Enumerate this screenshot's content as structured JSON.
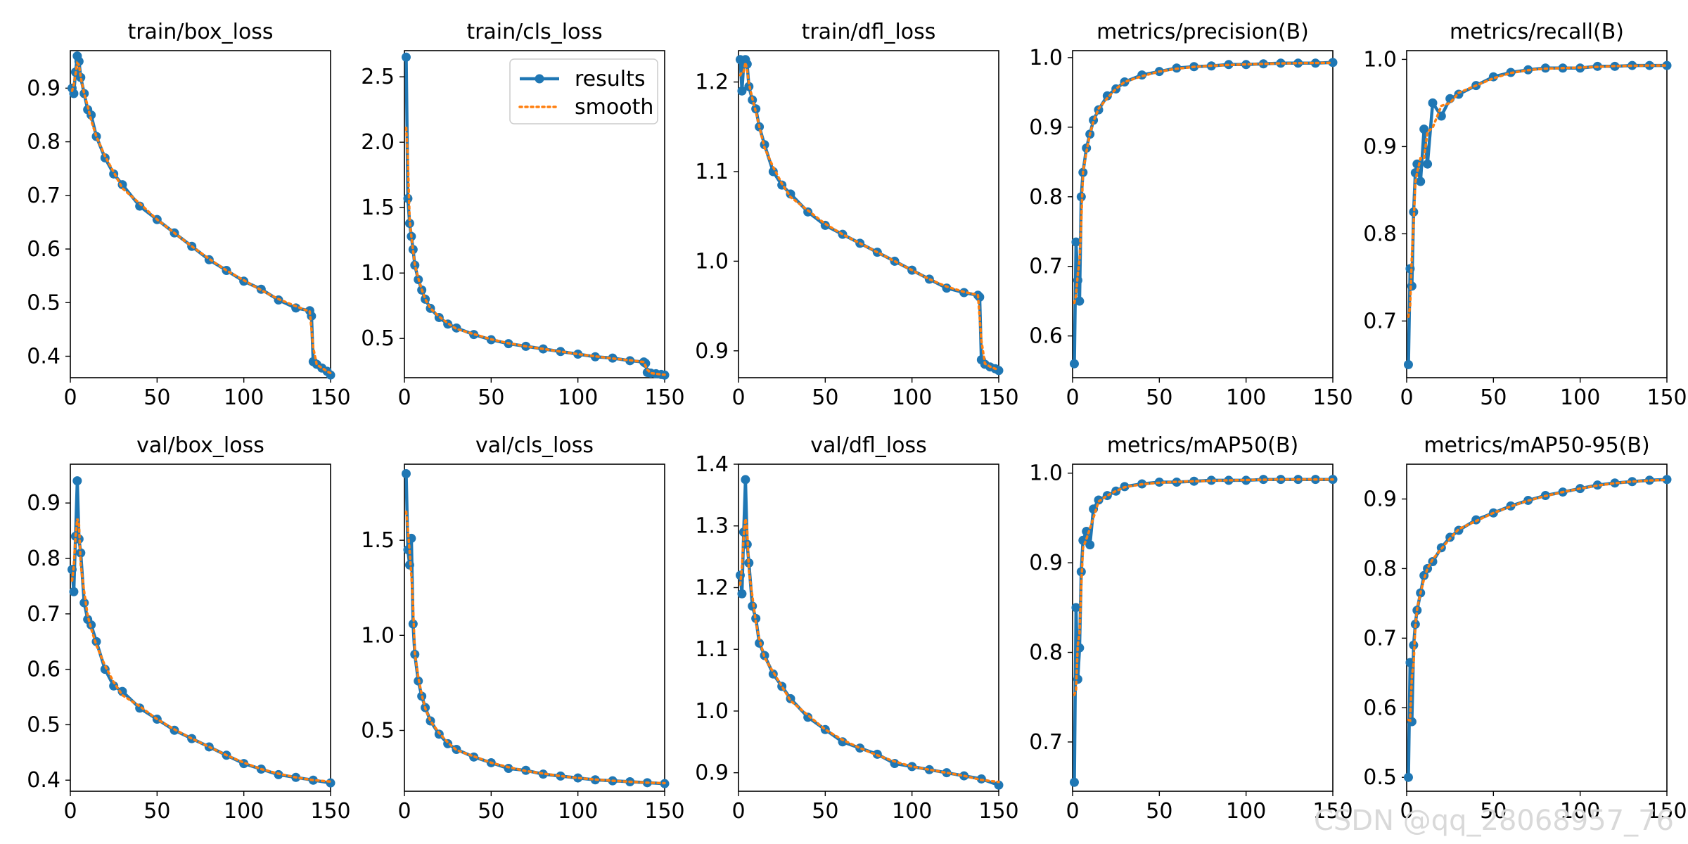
{
  "watermark": "CSDN @qq_28068957_76",
  "legend": {
    "entries": [
      "results",
      "smooth"
    ]
  },
  "colors": {
    "results": "#1f77b4",
    "smooth": "#ff7f0e",
    "axes": "#000000"
  },
  "chart_data": [
    {
      "type": "line",
      "title": "train/box_loss",
      "xlim": [
        0,
        150
      ],
      "ylim": [
        0.36,
        0.97
      ],
      "xticks": [
        0,
        50,
        100,
        150
      ],
      "yticks": [
        0.4,
        0.5,
        0.6,
        0.7,
        0.8,
        0.9
      ],
      "ytick_labels": [
        "0.4",
        "0.5",
        "0.6",
        "0.7",
        "0.8",
        "0.9"
      ],
      "x": [
        1,
        2,
        3,
        4,
        5,
        6,
        8,
        10,
        12,
        15,
        20,
        25,
        30,
        40,
        50,
        60,
        70,
        80,
        90,
        100,
        110,
        120,
        130,
        138,
        139,
        140,
        142,
        145,
        148,
        150
      ],
      "series": [
        {
          "name": "results",
          "values": [
            0.9,
            0.89,
            0.93,
            0.96,
            0.95,
            0.92,
            0.89,
            0.86,
            0.85,
            0.81,
            0.77,
            0.74,
            0.72,
            0.68,
            0.655,
            0.63,
            0.605,
            0.58,
            0.56,
            0.54,
            0.525,
            0.505,
            0.49,
            0.485,
            0.475,
            0.39,
            0.385,
            0.378,
            0.372,
            0.365
          ]
        }
      ]
    },
    {
      "type": "line",
      "title": "train/cls_loss",
      "xlim": [
        0,
        150
      ],
      "ylim": [
        0.2,
        2.7
      ],
      "xticks": [
        0,
        50,
        100,
        150
      ],
      "yticks": [
        0.5,
        1.0,
        1.5,
        2.0,
        2.5
      ],
      "ytick_labels": [
        "0.5",
        "1.0",
        "1.5",
        "2.0",
        "2.5"
      ],
      "x": [
        1,
        2,
        3,
        4,
        5,
        6,
        8,
        10,
        12,
        15,
        20,
        25,
        30,
        40,
        50,
        60,
        70,
        80,
        90,
        100,
        110,
        120,
        130,
        138,
        139,
        140,
        142,
        145,
        148,
        150
      ],
      "series": [
        {
          "name": "results",
          "values": [
            2.65,
            1.57,
            1.38,
            1.28,
            1.18,
            1.06,
            0.95,
            0.87,
            0.8,
            0.73,
            0.66,
            0.61,
            0.58,
            0.53,
            0.49,
            0.46,
            0.44,
            0.42,
            0.4,
            0.38,
            0.36,
            0.35,
            0.33,
            0.32,
            0.31,
            0.24,
            0.235,
            0.23,
            0.225,
            0.22
          ]
        }
      ]
    },
    {
      "type": "line",
      "title": "train/dfl_loss",
      "xlim": [
        0,
        150
      ],
      "ylim": [
        0.87,
        1.235
      ],
      "xticks": [
        0,
        50,
        100,
        150
      ],
      "yticks": [
        0.9,
        1.0,
        1.1,
        1.2
      ],
      "ytick_labels": [
        "0.9",
        "1.0",
        "1.1",
        "1.2"
      ],
      "x": [
        1,
        2,
        3,
        4,
        5,
        6,
        8,
        10,
        12,
        15,
        20,
        25,
        30,
        40,
        50,
        60,
        70,
        80,
        90,
        100,
        110,
        120,
        130,
        138,
        139,
        140,
        142,
        145,
        148,
        150
      ],
      "series": [
        {
          "name": "results",
          "values": [
            1.225,
            1.19,
            1.22,
            1.225,
            1.22,
            1.195,
            1.18,
            1.17,
            1.15,
            1.13,
            1.1,
            1.085,
            1.075,
            1.055,
            1.04,
            1.03,
            1.02,
            1.01,
            1.0,
            0.99,
            0.98,
            0.97,
            0.965,
            0.962,
            0.96,
            0.89,
            0.885,
            0.882,
            0.88,
            0.878
          ]
        }
      ]
    },
    {
      "type": "line",
      "title": "metrics/precision(B)",
      "xlim": [
        0,
        150
      ],
      "ylim": [
        0.54,
        1.01
      ],
      "xticks": [
        0,
        50,
        100,
        150
      ],
      "yticks": [
        0.6,
        0.7,
        0.8,
        0.9,
        1.0
      ],
      "ytick_labels": [
        "0.6",
        "0.7",
        "0.8",
        "0.9",
        "1.0"
      ],
      "x": [
        1,
        2,
        3,
        4,
        5,
        6,
        8,
        10,
        12,
        15,
        20,
        25,
        30,
        40,
        50,
        60,
        70,
        80,
        90,
        100,
        110,
        120,
        130,
        140,
        150
      ],
      "series": [
        {
          "name": "results",
          "values": [
            0.56,
            0.735,
            0.68,
            0.65,
            0.8,
            0.835,
            0.87,
            0.89,
            0.91,
            0.925,
            0.945,
            0.955,
            0.965,
            0.975,
            0.98,
            0.985,
            0.987,
            0.988,
            0.99,
            0.99,
            0.991,
            0.992,
            0.992,
            0.992,
            0.993
          ]
        }
      ]
    },
    {
      "type": "line",
      "title": "metrics/recall(B)",
      "xlim": [
        0,
        150
      ],
      "ylim": [
        0.635,
        1.01
      ],
      "xticks": [
        0,
        50,
        100,
        150
      ],
      "yticks": [
        0.7,
        0.8,
        0.9,
        1.0
      ],
      "ytick_labels": [
        "0.7",
        "0.8",
        "0.9",
        "1.0"
      ],
      "x": [
        1,
        2,
        3,
        4,
        5,
        6,
        8,
        10,
        12,
        15,
        20,
        25,
        30,
        40,
        50,
        60,
        70,
        80,
        90,
        100,
        110,
        120,
        130,
        140,
        150
      ],
      "series": [
        {
          "name": "results",
          "values": [
            0.65,
            0.76,
            0.74,
            0.825,
            0.87,
            0.88,
            0.86,
            0.92,
            0.88,
            0.95,
            0.935,
            0.955,
            0.96,
            0.97,
            0.98,
            0.985,
            0.988,
            0.99,
            0.99,
            0.99,
            0.992,
            0.992,
            0.993,
            0.993,
            0.993
          ]
        }
      ]
    },
    {
      "type": "line",
      "title": "val/box_loss",
      "xlim": [
        0,
        150
      ],
      "ylim": [
        0.38,
        0.97
      ],
      "xticks": [
        0,
        50,
        100,
        150
      ],
      "yticks": [
        0.4,
        0.5,
        0.6,
        0.7,
        0.8,
        0.9
      ],
      "ytick_labels": [
        "0.4",
        "0.5",
        "0.6",
        "0.7",
        "0.8",
        "0.9"
      ],
      "x": [
        1,
        2,
        3,
        4,
        5,
        6,
        8,
        10,
        12,
        15,
        20,
        25,
        30,
        40,
        50,
        60,
        70,
        80,
        90,
        100,
        110,
        120,
        130,
        140,
        150
      ],
      "series": [
        {
          "name": "results",
          "values": [
            0.78,
            0.74,
            0.84,
            0.94,
            0.835,
            0.81,
            0.72,
            0.69,
            0.68,
            0.65,
            0.6,
            0.57,
            0.56,
            0.53,
            0.51,
            0.49,
            0.475,
            0.46,
            0.445,
            0.43,
            0.42,
            0.41,
            0.405,
            0.4,
            0.395
          ]
        }
      ]
    },
    {
      "type": "line",
      "title": "val/cls_loss",
      "xlim": [
        0,
        150
      ],
      "ylim": [
        0.18,
        1.9
      ],
      "xticks": [
        0,
        50,
        100,
        150
      ],
      "yticks": [
        0.5,
        1.0,
        1.5
      ],
      "ytick_labels": [
        "0.5",
        "1.0",
        "1.5"
      ],
      "x": [
        1,
        2,
        3,
        4,
        5,
        6,
        8,
        10,
        12,
        15,
        20,
        25,
        30,
        40,
        50,
        60,
        70,
        80,
        90,
        100,
        110,
        120,
        130,
        140,
        150
      ],
      "series": [
        {
          "name": "results",
          "values": [
            1.85,
            1.45,
            1.37,
            1.51,
            1.06,
            0.9,
            0.76,
            0.68,
            0.62,
            0.55,
            0.48,
            0.43,
            0.4,
            0.36,
            0.33,
            0.3,
            0.29,
            0.27,
            0.26,
            0.25,
            0.24,
            0.235,
            0.23,
            0.225,
            0.22
          ]
        }
      ]
    },
    {
      "type": "line",
      "title": "val/dfl_loss",
      "xlim": [
        0,
        150
      ],
      "ylim": [
        0.87,
        1.4
      ],
      "xticks": [
        0,
        50,
        100,
        150
      ],
      "yticks": [
        0.9,
        1.0,
        1.1,
        1.2,
        1.3,
        1.4
      ],
      "ytick_labels": [
        "0.9",
        "1.0",
        "1.1",
        "1.2",
        "1.3",
        "1.4"
      ],
      "x": [
        1,
        2,
        3,
        4,
        5,
        6,
        8,
        10,
        12,
        15,
        20,
        25,
        30,
        40,
        50,
        60,
        70,
        80,
        90,
        100,
        110,
        120,
        130,
        140,
        150
      ],
      "series": [
        {
          "name": "results",
          "values": [
            1.22,
            1.19,
            1.29,
            1.375,
            1.27,
            1.24,
            1.17,
            1.15,
            1.11,
            1.09,
            1.06,
            1.04,
            1.02,
            0.99,
            0.97,
            0.95,
            0.94,
            0.93,
            0.915,
            0.91,
            0.905,
            0.9,
            0.895,
            0.89,
            0.88
          ]
        }
      ]
    },
    {
      "type": "line",
      "title": "metrics/mAP50(B)",
      "xlim": [
        0,
        150
      ],
      "ylim": [
        0.645,
        1.01
      ],
      "xticks": [
        0,
        50,
        100,
        150
      ],
      "yticks": [
        0.7,
        0.8,
        0.9,
        1.0
      ],
      "ytick_labels": [
        "0.7",
        "0.8",
        "0.9",
        "1.0"
      ],
      "x": [
        1,
        2,
        3,
        4,
        5,
        6,
        8,
        10,
        12,
        15,
        20,
        25,
        30,
        40,
        50,
        60,
        70,
        80,
        90,
        100,
        110,
        120,
        130,
        140,
        150
      ],
      "series": [
        {
          "name": "results",
          "values": [
            0.655,
            0.85,
            0.77,
            0.805,
            0.89,
            0.925,
            0.935,
            0.92,
            0.96,
            0.97,
            0.975,
            0.98,
            0.985,
            0.988,
            0.99,
            0.99,
            0.991,
            0.992,
            0.992,
            0.992,
            0.993,
            0.993,
            0.993,
            0.993,
            0.993
          ]
        }
      ]
    },
    {
      "type": "line",
      "title": "metrics/mAP50-95(B)",
      "xlim": [
        0,
        150
      ],
      "ylim": [
        0.48,
        0.95
      ],
      "xticks": [
        0,
        50,
        100,
        150
      ],
      "yticks": [
        0.5,
        0.6,
        0.7,
        0.8,
        0.9
      ],
      "ytick_labels": [
        "0.5",
        "0.6",
        "0.7",
        "0.8",
        "0.9"
      ],
      "x": [
        1,
        2,
        3,
        4,
        5,
        6,
        8,
        10,
        12,
        15,
        20,
        25,
        30,
        40,
        50,
        60,
        70,
        80,
        90,
        100,
        110,
        120,
        130,
        140,
        150
      ],
      "series": [
        {
          "name": "results",
          "values": [
            0.5,
            0.665,
            0.58,
            0.69,
            0.72,
            0.74,
            0.765,
            0.79,
            0.8,
            0.81,
            0.83,
            0.845,
            0.855,
            0.87,
            0.88,
            0.89,
            0.898,
            0.905,
            0.91,
            0.915,
            0.92,
            0.923,
            0.925,
            0.927,
            0.928
          ]
        }
      ]
    }
  ]
}
